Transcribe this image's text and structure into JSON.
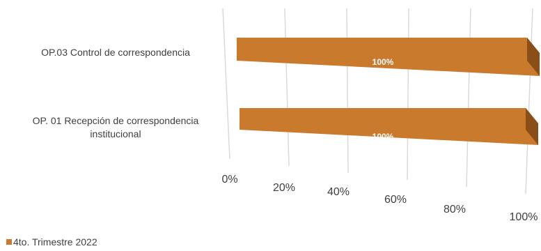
{
  "chart_data": {
    "type": "bar",
    "orientation": "horizontal",
    "style": "3d",
    "categories": [
      "OP. 01 Recepción de correspondencia institucional",
      "OP.03 Control de correspondencia"
    ],
    "category_lines": [
      [
        "OP. 01 Recepción de correspondencia",
        "institucional"
      ],
      [
        "OP.03 Control de correspondencia"
      ]
    ],
    "series": [
      {
        "name": "4to. Trimestre 2022",
        "values": [
          1.0,
          1.0
        ],
        "labels": [
          "100%",
          "100%"
        ]
      }
    ],
    "xlim": [
      0,
      1
    ],
    "ticks": [
      0,
      0.2,
      0.4,
      0.6,
      0.8,
      1.0
    ],
    "tick_labels": [
      "0%",
      "20%",
      "40%",
      "60%",
      "80%",
      "100%"
    ],
    "grid": true,
    "legend_position": "bottom-left",
    "colors": {
      "bar_front": "#C97A2C",
      "bar_top": "#A3601F",
      "bar_side": "#8A4F18",
      "grid": "#D9D9D9"
    }
  }
}
